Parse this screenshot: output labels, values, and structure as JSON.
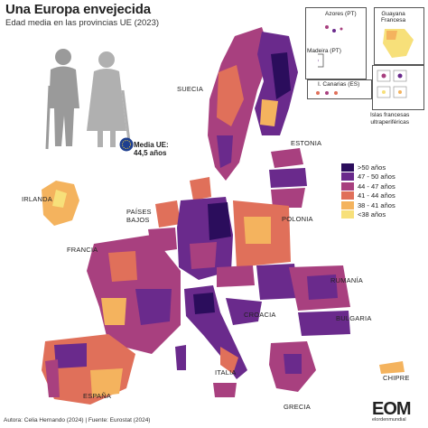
{
  "title": "Una Europa envejecida",
  "subtitle": "Edad media en las provincias UE (2023)",
  "eu_average": {
    "line1": "Media UE:",
    "line2": "44,5 años"
  },
  "countries": {
    "suecia": "SUECIA",
    "estonia": "ESTONIA",
    "irlanda": "IRLANDA",
    "paises_bajos_1": "PAÍSES",
    "paises_bajos_2": "BAJOS",
    "polonia": "POLONIA",
    "francia": "FRANCIA",
    "rumania": "RUMANÍA",
    "croacia": "CROACIA",
    "bulgaria": "BULGARIA",
    "italia": "ITALIA",
    "espana": "ESPAÑA",
    "grecia": "GRECIA",
    "chipre": "CHIPRE"
  },
  "insets": {
    "azores": "Azores (PT)",
    "madeira": "Madeira (PT)",
    "canarias": "I. Canarias (ES)",
    "guayana_1": "Guayana",
    "guayana_2": "Francesa",
    "ultra_1": "Islas francesas",
    "ultra_2": "ultraperiféricas"
  },
  "legend": [
    {
      "label": ">50 años",
      "color": "#2b0d5c"
    },
    {
      "label": "47 - 50 años",
      "color": "#6a2a8c"
    },
    {
      "label": "44 - 47 años",
      "color": "#a8407f"
    },
    {
      "label": "41 - 44 años",
      "color": "#e0705a"
    },
    {
      "label": "38 - 41 años",
      "color": "#f4b35e"
    },
    {
      "label": "<38 años",
      "color": "#f7e07a"
    }
  ],
  "footer": "Autora: Celia Hernando (2024) | Fuente: Eurostat (2024)",
  "logo": {
    "main": "EOM",
    "sub": "elordenmundial"
  }
}
